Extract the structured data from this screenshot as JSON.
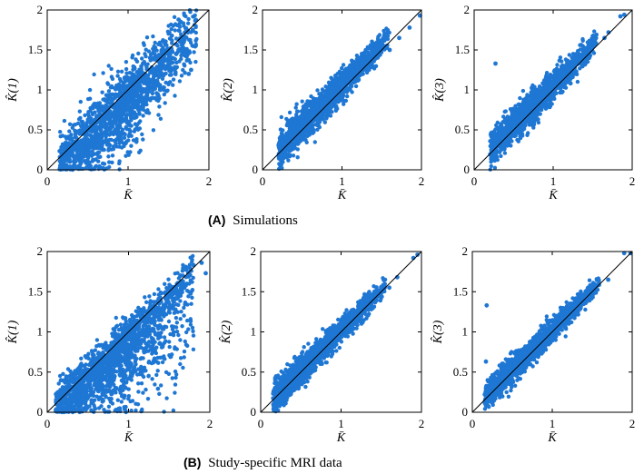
{
  "colors": {
    "points": "#1f77d4",
    "diagonal": "#000000",
    "axes": "#000000"
  },
  "captions": [
    {
      "tag": "(A)",
      "text": "Simulations"
    },
    {
      "tag": "(B)",
      "text": "Study-specific MRI data"
    }
  ],
  "chart_data": [
    {
      "type": "scatter",
      "id": "A1",
      "row": "Simulations",
      "xlabel": "K̄",
      "ylabel": "K̂(1)",
      "xlim": [
        0,
        2
      ],
      "ylim": [
        0,
        2
      ],
      "xticks": [
        0,
        1,
        2
      ],
      "yticks": [
        0,
        0.5,
        1,
        1.5,
        2
      ],
      "xtick_labels": [
        "0",
        "1",
        "2"
      ],
      "ytick_labels": [
        "0",
        "0.5",
        "1",
        "1.5",
        "2"
      ],
      "reference_line": {
        "from": [
          0,
          0
        ],
        "to": [
          2,
          2
        ]
      },
      "point_cloud": {
        "n": 1600,
        "x_range": [
          0.15,
          1.85
        ],
        "shape": "wide",
        "bias": -0.08,
        "spread_low": 0.18,
        "spread_high": 0.2,
        "sag": 0.25,
        "seed": 11
      },
      "highlight_points": [
        [
          1.8,
          1.75
        ],
        [
          1.52,
          1.45
        ],
        [
          1.45,
          1.3
        ],
        [
          1.75,
          1.2
        ],
        [
          1.78,
          1.25
        ],
        [
          1.4,
          1.0
        ]
      ]
    },
    {
      "type": "scatter",
      "id": "A2",
      "row": "Simulations",
      "xlabel": "K̄",
      "ylabel": "K̂(2)",
      "xlim": [
        0,
        2
      ],
      "ylim": [
        0,
        2
      ],
      "xticks": [
        0,
        1,
        2
      ],
      "yticks": [
        0,
        0.5,
        1,
        1.5,
        2
      ],
      "xtick_labels": [
        "0",
        "1",
        "2"
      ],
      "ytick_labels": [
        "0",
        "0.5",
        "1",
        "1.5",
        "2"
      ],
      "reference_line": {
        "from": [
          0,
          0
        ],
        "to": [
          2,
          2
        ]
      },
      "point_cloud": {
        "n": 1600,
        "x_range": [
          0.2,
          1.6
        ],
        "shape": "band",
        "bias": 0.05,
        "spread_low": 0.12,
        "spread_high": 0.06,
        "sag": 0,
        "seed": 23
      },
      "highlight_points": [
        [
          1.72,
          1.65
        ],
        [
          1.85,
          1.78
        ],
        [
          1.98,
          1.93
        ],
        [
          1.6,
          1.5
        ]
      ]
    },
    {
      "type": "scatter",
      "id": "A3",
      "row": "Simulations",
      "xlabel": "K̄",
      "ylabel": "K̂(3)",
      "xlim": [
        0,
        2
      ],
      "ylim": [
        0,
        2
      ],
      "xticks": [
        0,
        1,
        2
      ],
      "yticks": [
        0,
        0.5,
        1,
        1.5,
        2
      ],
      "xtick_labels": [
        "0",
        "1",
        "2"
      ],
      "ytick_labels": [
        "0",
        "0.5",
        "1",
        "1.5",
        "2"
      ],
      "reference_line": {
        "from": [
          0,
          0
        ],
        "to": [
          2,
          2
        ]
      },
      "point_cloud": {
        "n": 1600,
        "x_range": [
          0.2,
          1.55
        ],
        "shape": "band",
        "bias": 0.05,
        "spread_low": 0.11,
        "spread_high": 0.07,
        "sag": 0,
        "seed": 37
      },
      "highlight_points": [
        [
          0.27,
          1.33
        ],
        [
          1.65,
          1.65
        ],
        [
          1.85,
          1.92
        ],
        [
          1.9,
          1.94
        ],
        [
          1.7,
          1.72
        ]
      ]
    },
    {
      "type": "scatter",
      "id": "B1",
      "row": "Study-specific MRI data",
      "xlabel": "K̄",
      "ylabel": "K̂(1)",
      "xlim": [
        0,
        2
      ],
      "ylim": [
        0,
        2
      ],
      "xticks": [
        0,
        1,
        2
      ],
      "yticks": [
        0,
        0.5,
        1,
        1.5,
        2
      ],
      "xtick_labels": [
        "0",
        "1",
        "2"
      ],
      "ytick_labels": [
        "0",
        "0.5",
        "1",
        "1.5",
        "2"
      ],
      "reference_line": {
        "from": [
          0,
          0
        ],
        "to": [
          2,
          2
        ]
      },
      "point_cloud": {
        "n": 1800,
        "x_range": [
          0.1,
          1.8
        ],
        "shape": "fan",
        "bias": -0.05,
        "spread_low": 0.15,
        "spread_high": 0.1,
        "sag": 0.65,
        "seed": 51
      },
      "highlight_points": [
        [
          1.8,
          1.83
        ],
        [
          1.95,
          1.73
        ],
        [
          1.9,
          1.86
        ],
        [
          1.6,
          1.58
        ]
      ]
    },
    {
      "type": "scatter",
      "id": "B2",
      "row": "Study-specific MRI data",
      "xlabel": "K̄",
      "ylabel": "K̂(2)",
      "xlim": [
        0,
        2
      ],
      "ylim": [
        0,
        2
      ],
      "xticks": [
        0,
        1,
        2
      ],
      "yticks": [
        0,
        0.5,
        1,
        1.5,
        2
      ],
      "xtick_labels": [
        "0",
        "1",
        "2"
      ],
      "ytick_labels": [
        "0",
        "0.5",
        "1",
        "1.5",
        "2"
      ],
      "reference_line": {
        "from": [
          0,
          0
        ],
        "to": [
          2,
          2
        ]
      },
      "point_cloud": {
        "n": 1700,
        "x_range": [
          0.15,
          1.55
        ],
        "shape": "band",
        "bias": 0.02,
        "spread_low": 0.1,
        "spread_high": 0.05,
        "sag": 0,
        "seed": 67
      },
      "highlight_points": [
        [
          1.6,
          1.55
        ],
        [
          1.7,
          1.68
        ],
        [
          1.9,
          1.92
        ],
        [
          1.95,
          1.96
        ]
      ]
    },
    {
      "type": "scatter",
      "id": "B3",
      "row": "Study-specific MRI data",
      "xlabel": "K̄",
      "ylabel": "K̂(3)",
      "xlim": [
        0,
        2
      ],
      "ylim": [
        0,
        2
      ],
      "xticks": [
        0,
        1,
        2
      ],
      "yticks": [
        0,
        0.5,
        1,
        1.5,
        2
      ],
      "xtick_labels": [
        "0",
        "1",
        "2"
      ],
      "ytick_labels": [
        "0",
        "0.5",
        "1",
        "1.5",
        "2"
      ],
      "reference_line": {
        "from": [
          0,
          0
        ],
        "to": [
          2,
          2
        ]
      },
      "point_cloud": {
        "n": 1700,
        "x_range": [
          0.15,
          1.6
        ],
        "shape": "band",
        "bias": 0.02,
        "spread_low": 0.09,
        "spread_high": 0.05,
        "sag": 0,
        "seed": 79
      },
      "highlight_points": [
        [
          0.18,
          1.33
        ],
        [
          0.17,
          0.63
        ],
        [
          1.9,
          1.98
        ],
        [
          1.98,
          1.98
        ],
        [
          1.7,
          1.65
        ]
      ]
    }
  ]
}
